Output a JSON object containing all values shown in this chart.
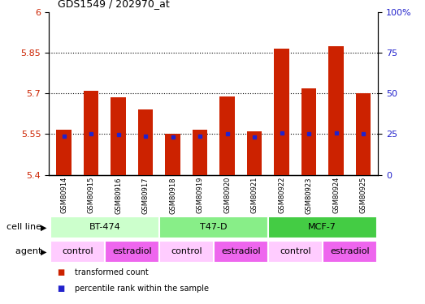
{
  "title": "GDS1549 / 202970_at",
  "samples": [
    "GSM80914",
    "GSM80915",
    "GSM80916",
    "GSM80917",
    "GSM80918",
    "GSM80919",
    "GSM80920",
    "GSM80921",
    "GSM80922",
    "GSM80923",
    "GSM80924",
    "GSM80925"
  ],
  "bar_values": [
    5.565,
    5.71,
    5.685,
    5.64,
    5.55,
    5.565,
    5.688,
    5.56,
    5.865,
    5.72,
    5.875,
    5.7
  ],
  "blue_dot_values": [
    5.543,
    5.55,
    5.548,
    5.543,
    5.538,
    5.543,
    5.55,
    5.54,
    5.553,
    5.55,
    5.553,
    5.55
  ],
  "ylim_left": [
    5.4,
    6.0
  ],
  "ylim_right": [
    0,
    100
  ],
  "yticks_left": [
    5.4,
    5.55,
    5.7,
    5.85,
    6.0
  ],
  "yticks_right": [
    0,
    25,
    50,
    75,
    100
  ],
  "ytick_labels_left": [
    "5.4",
    "5.55",
    "5.7",
    "5.85",
    "6"
  ],
  "ytick_labels_right": [
    "0",
    "25",
    "50",
    "75",
    "100%"
  ],
  "dotted_lines": [
    5.55,
    5.7,
    5.85
  ],
  "bar_color": "#CC2200",
  "dot_color": "#2222CC",
  "cell_line_groups": [
    {
      "label": "BT-474",
      "start": 0,
      "end": 3,
      "color": "#CCFFCC"
    },
    {
      "label": "T47-D",
      "start": 4,
      "end": 7,
      "color": "#88EE88"
    },
    {
      "label": "MCF-7",
      "start": 8,
      "end": 11,
      "color": "#44CC44"
    }
  ],
  "agent_groups": [
    {
      "label": "control",
      "start": 0,
      "end": 1,
      "color": "#FFCCFF"
    },
    {
      "label": "estradiol",
      "start": 2,
      "end": 3,
      "color": "#EE66EE"
    },
    {
      "label": "control",
      "start": 4,
      "end": 5,
      "color": "#FFCCFF"
    },
    {
      "label": "estradiol",
      "start": 6,
      "end": 7,
      "color": "#EE66EE"
    },
    {
      "label": "control",
      "start": 8,
      "end": 9,
      "color": "#FFCCFF"
    },
    {
      "label": "estradiol",
      "start": 10,
      "end": 11,
      "color": "#EE66EE"
    }
  ],
  "legend_items": [
    {
      "label": "transformed count",
      "color": "#CC2200"
    },
    {
      "label": "percentile rank within the sample",
      "color": "#2222CC"
    }
  ],
  "bar_width": 0.55,
  "left_axis_color": "#CC2200",
  "right_axis_color": "#2222CC",
  "xtick_bg_color": "#CCCCCC"
}
